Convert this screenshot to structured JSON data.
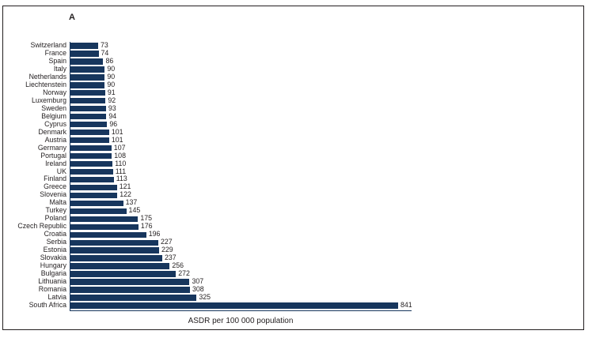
{
  "panel_label": "A",
  "chart_data": {
    "type": "bar",
    "orientation": "horizontal",
    "title": "A",
    "xlabel": "ASDR per 100 000 population",
    "ylabel": "",
    "xlim": [
      0,
      880
    ],
    "grid": "off",
    "legend": "none",
    "bar_color": "#17365d",
    "axis_color": "#17365d",
    "text_color": "#231f20",
    "categories": [
      "Switzerland",
      "France",
      "Spain",
      "Italy",
      "Netherlands",
      "Liechtenstein",
      "Norway",
      "Luxemburg",
      "Sweden",
      "Belgium",
      "Cyprus",
      "Denmark",
      "Austria",
      "Germany",
      "Portugal",
      "Ireland",
      "UK",
      "Finland",
      "Greece",
      "Slovenia",
      "Malta",
      "Turkey",
      "Poland",
      "Czech Republic",
      "Croatia",
      "Serbia",
      "Estonia",
      "Slovakia",
      "Hungary",
      "Bulgaria",
      "Lithuania",
      "Romania",
      "Latvia",
      "South Africa"
    ],
    "values": [
      73,
      74,
      86,
      90,
      90,
      90,
      91,
      92,
      93,
      94,
      96,
      101,
      101,
      107,
      108,
      110,
      111,
      113,
      121,
      122,
      137,
      145,
      175,
      176,
      196,
      227,
      229,
      237,
      256,
      272,
      307,
      308,
      325,
      841
    ]
  }
}
